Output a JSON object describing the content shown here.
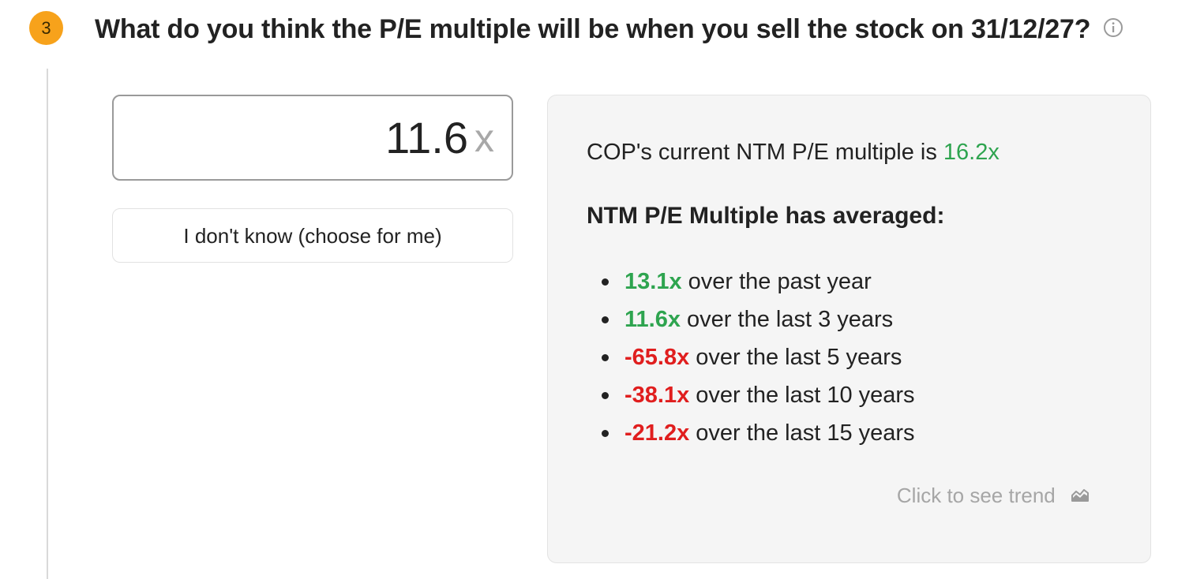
{
  "step": {
    "number": "3",
    "question": "What do you think the P/E multiple will be when you sell the stock on 31/12/27?",
    "info_icon": "info-circle-icon"
  },
  "estimate": {
    "value": "11.6",
    "suffix": "x"
  },
  "dont_know_label": "I don't know (choose for me)",
  "stats": {
    "current_prefix": "COP's current NTM P/E multiple is ",
    "current_value": "16.2x",
    "heading": "NTM P/E Multiple has averaged:",
    "averages": [
      {
        "value": "13.1x",
        "text": " over the past year",
        "tone": "positive"
      },
      {
        "value": "11.6x",
        "text": " over the last 3 years",
        "tone": "positive"
      },
      {
        "value": "-65.8x",
        "text": " over the last 5 years",
        "tone": "negative"
      },
      {
        "value": "-38.1x",
        "text": " over the last 10 years",
        "tone": "negative"
      },
      {
        "value": "-21.2x",
        "text": " over the last 15 years",
        "tone": "negative"
      }
    ],
    "trend_link": "Click to see trend",
    "trend_icon": "area-chart-icon"
  },
  "colors": {
    "accent": "#f7a21b",
    "positive": "#2ea44f",
    "negative": "#e01e1e"
  }
}
